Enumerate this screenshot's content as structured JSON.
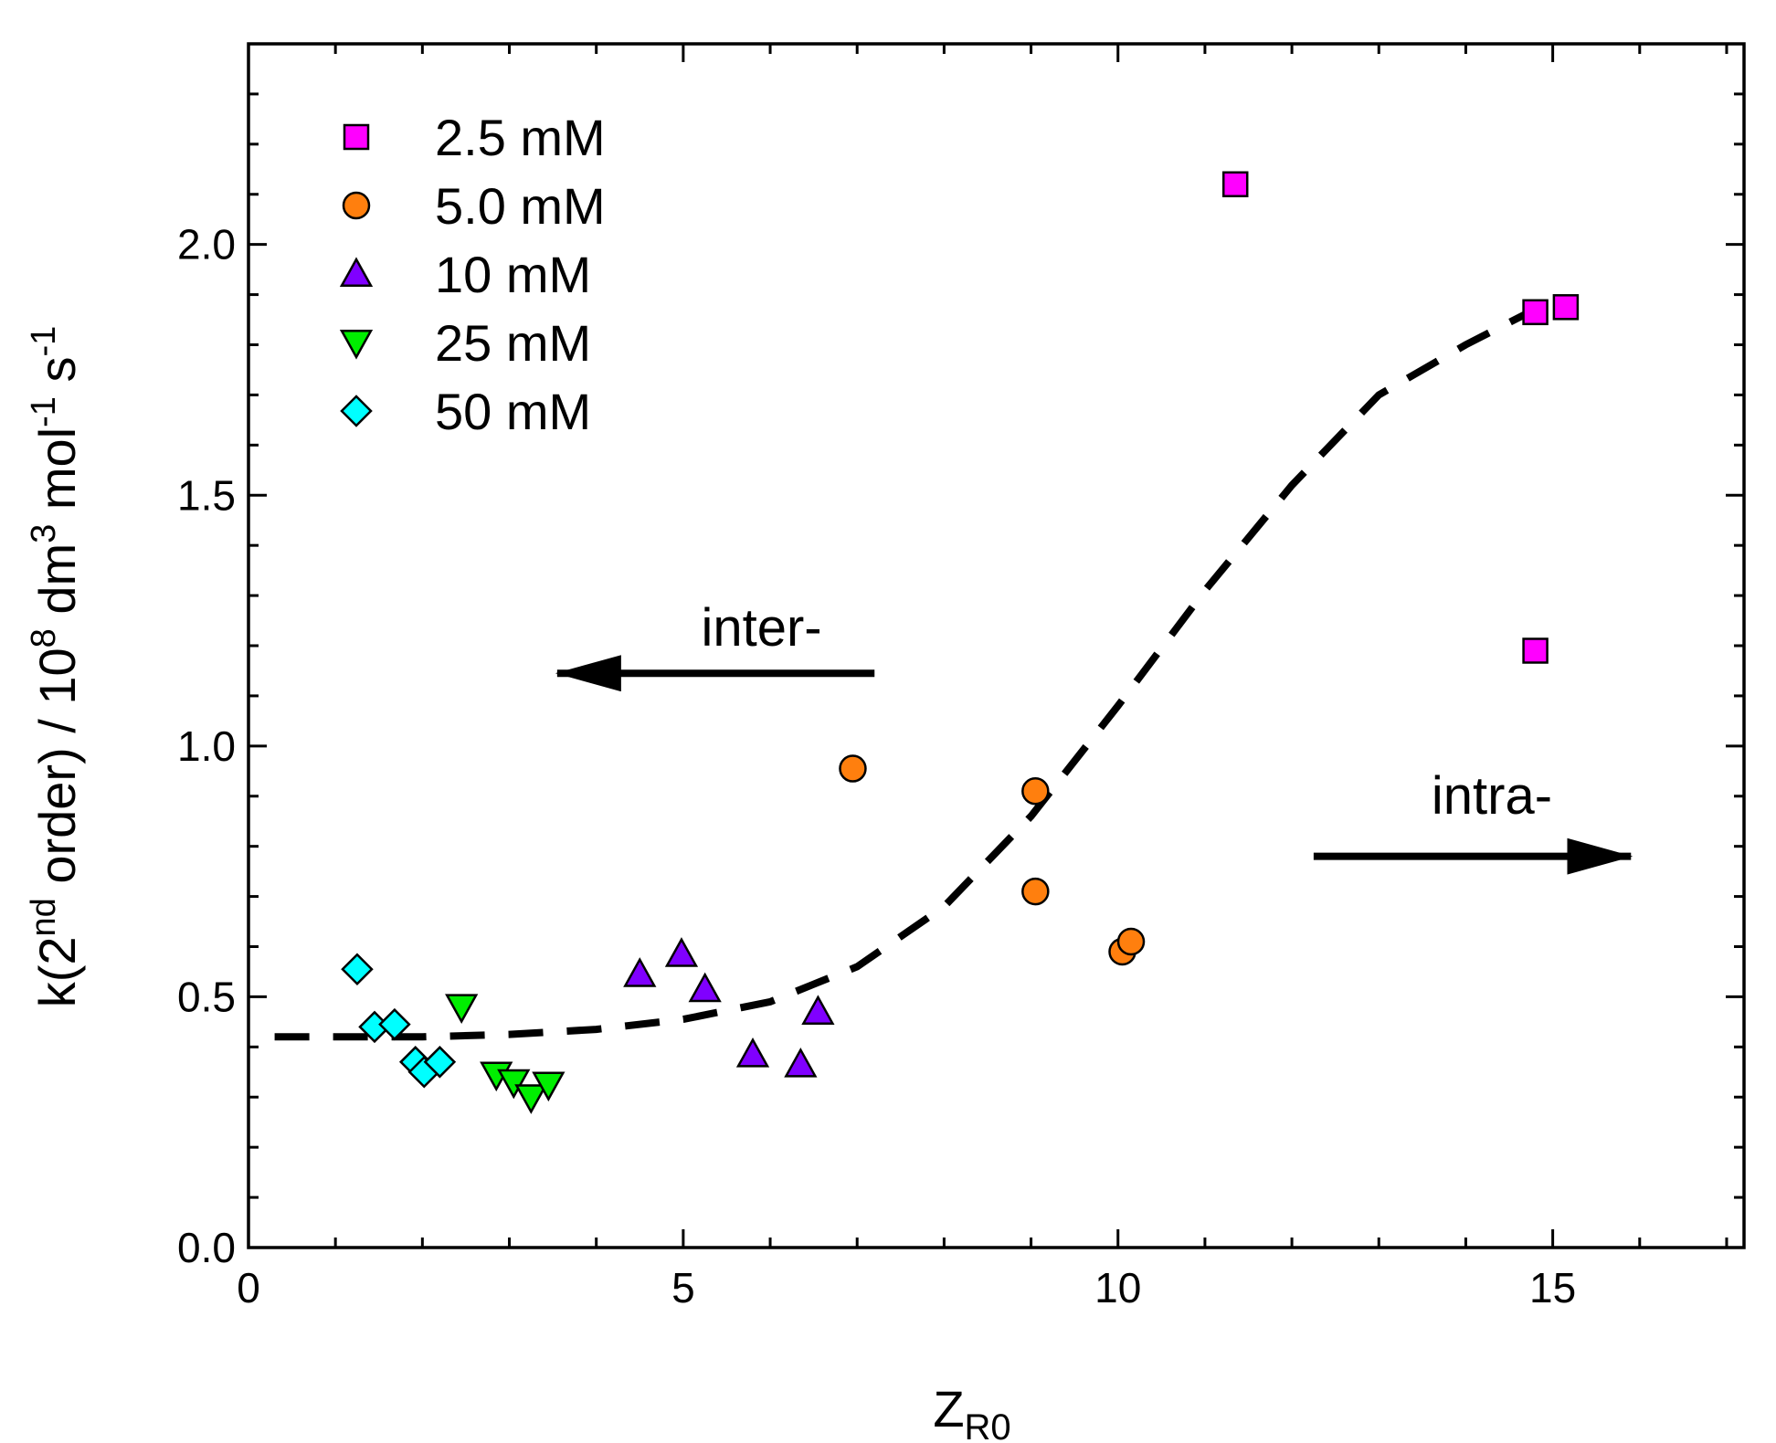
{
  "chart_data": {
    "type": "scatter",
    "xlabel": {
      "main": "Z",
      "sub": "R0"
    },
    "ylabel": {
      "p1": "k(2",
      "sup1": "nd",
      "p2": " order) / 10",
      "sup2": "8",
      "p3": " dm",
      "sup3": "3",
      "p4": " mol",
      "sup4": "-1",
      "p5": " s",
      "sup5": "-1"
    },
    "xlim": [
      0,
      17.2
    ],
    "ylim": [
      0,
      2.4
    ],
    "x_ticks": [
      0,
      5,
      10,
      15
    ],
    "y_ticks": [
      0.0,
      0.5,
      1.0,
      1.5,
      2.0
    ],
    "x_tick_labels": [
      "0",
      "5",
      "10",
      "15"
    ],
    "y_tick_labels": [
      "0.0",
      "0.5",
      "1.0",
      "1.5",
      "2.0"
    ],
    "x_minor_step": 1,
    "y_minor_step": 0.1,
    "grid": false,
    "legend_position": "top-left",
    "series": [
      {
        "name": "2.5 mM",
        "marker": "square",
        "color": "#ff00ff",
        "points": [
          [
            11.35,
            2.12
          ],
          [
            14.8,
            1.865
          ],
          [
            15.15,
            1.875
          ],
          [
            14.8,
            1.19
          ]
        ]
      },
      {
        "name": "5.0 mM",
        "marker": "circle",
        "color": "#ff7f0e",
        "points": [
          [
            6.95,
            0.955
          ],
          [
            9.05,
            0.91
          ],
          [
            9.05,
            0.71
          ],
          [
            10.05,
            0.59
          ],
          [
            10.15,
            0.61
          ]
        ]
      },
      {
        "name": "10 mM",
        "marker": "triangle-up",
        "color": "#8000ff",
        "points": [
          [
            4.5,
            0.545
          ],
          [
            4.98,
            0.585
          ],
          [
            5.25,
            0.515
          ],
          [
            5.8,
            0.385
          ],
          [
            6.35,
            0.365
          ],
          [
            6.55,
            0.47
          ]
        ]
      },
      {
        "name": "25 mM",
        "marker": "triangle-down",
        "color": "#00ee00",
        "points": [
          [
            2.45,
            0.48
          ],
          [
            2.85,
            0.345
          ],
          [
            3.05,
            0.33
          ],
          [
            3.25,
            0.3
          ],
          [
            3.45,
            0.325
          ]
        ]
      },
      {
        "name": "50 mM",
        "marker": "diamond",
        "color": "#00ffff",
        "points": [
          [
            1.25,
            0.555
          ],
          [
            1.45,
            0.44
          ],
          [
            1.68,
            0.445
          ],
          [
            1.92,
            0.37
          ],
          [
            2.02,
            0.35
          ],
          [
            2.2,
            0.37
          ]
        ]
      }
    ],
    "fit_line": {
      "style": "dashed",
      "color": "#000000",
      "points": [
        [
          0.3,
          0.42
        ],
        [
          1.0,
          0.42
        ],
        [
          2.0,
          0.42
        ],
        [
          3.0,
          0.425
        ],
        [
          4.0,
          0.435
        ],
        [
          5.0,
          0.455
        ],
        [
          6.0,
          0.49
        ],
        [
          7.0,
          0.56
        ],
        [
          8.0,
          0.68
        ],
        [
          9.0,
          0.86
        ],
        [
          10.0,
          1.08
        ],
        [
          11.0,
          1.31
        ],
        [
          12.0,
          1.52
        ],
        [
          13.0,
          1.7
        ],
        [
          14.0,
          1.8
        ],
        [
          14.9,
          1.88
        ]
      ]
    },
    "annotations": [
      {
        "text": "inter-",
        "x": 5.9,
        "y": 1.2,
        "arrow_from": [
          7.2,
          1.145
        ],
        "arrow_to": [
          3.55,
          1.145
        ]
      },
      {
        "text": "intra-",
        "x": 14.3,
        "y": 0.865,
        "arrow_from": [
          12.25,
          0.78
        ],
        "arrow_to": [
          15.9,
          0.78
        ]
      }
    ]
  }
}
